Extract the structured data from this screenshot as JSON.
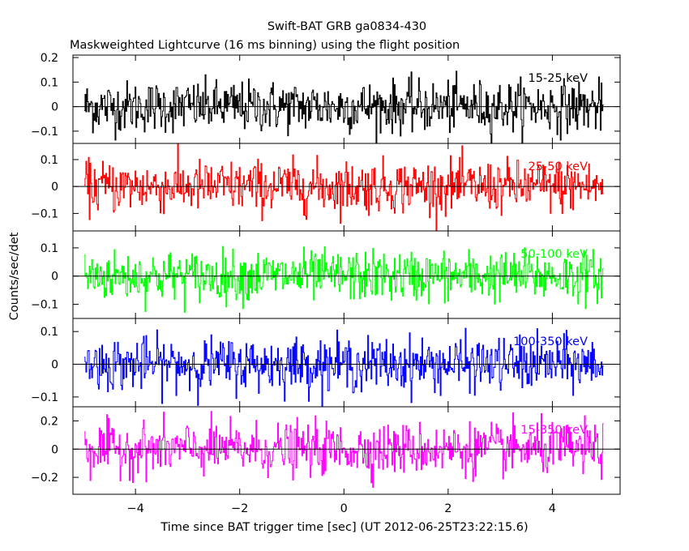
{
  "chart_data": {
    "type": "line",
    "title": "Swift-BAT GRB ga0834-430",
    "subtitle": "Maskweighted Lightcurve (16 ms binning) using the flight position",
    "xlabel": "Time since BAT trigger time [sec] (UT 2012-06-25T23:22:15.6)",
    "ylabel": "Counts/sec/det",
    "xlim": [
      -5.2,
      5.3
    ],
    "x_ticks": [
      -4,
      -2,
      0,
      2,
      4
    ],
    "x_tick_labels": [
      "−4",
      "−2",
      "0",
      "2",
      "4"
    ],
    "bin_seconds": 0.016,
    "x_start": -4.976,
    "x_end": 4.976,
    "panels": [
      {
        "name": "15-25 keV",
        "color": "#000000",
        "ylim": [
          -0.15,
          0.21
        ],
        "y_ticks": [
          -0.1,
          0,
          0.1,
          0.2
        ],
        "y_tick_labels": [
          "−0.1",
          "0",
          "0.1",
          "0.2"
        ],
        "noise_sigma": 0.052
      },
      {
        "name": "25-50 keV",
        "color": "#ff0000",
        "ylim": [
          -0.165,
          0.16
        ],
        "y_ticks": [
          -0.1,
          0,
          0.1
        ],
        "y_tick_labels": [
          "−0.1",
          "0",
          "0.1"
        ],
        "noise_sigma": 0.048
      },
      {
        "name": "50-100 keV",
        "color": "#00ff00",
        "ylim": [
          -0.15,
          0.16
        ],
        "y_ticks": [
          -0.1,
          0,
          0.1
        ],
        "y_tick_labels": [
          "−0.1",
          "0",
          "0.1"
        ],
        "noise_sigma": 0.044
      },
      {
        "name": "100-350 keV",
        "color": "#0000ff",
        "ylim": [
          -0.13,
          0.14
        ],
        "y_ticks": [
          -0.1,
          0,
          0.1
        ],
        "y_tick_labels": [
          "−0.1",
          "0",
          "0.1"
        ],
        "noise_sigma": 0.04
      },
      {
        "name": "15-350 keV",
        "color": "#ff00ff",
        "ylim": [
          -0.32,
          0.3
        ],
        "y_ticks": [
          -0.2,
          0,
          0.2
        ],
        "y_tick_labels": [
          "−0.2",
          "0",
          "0.2"
        ],
        "noise_sigma": 0.09
      }
    ]
  }
}
